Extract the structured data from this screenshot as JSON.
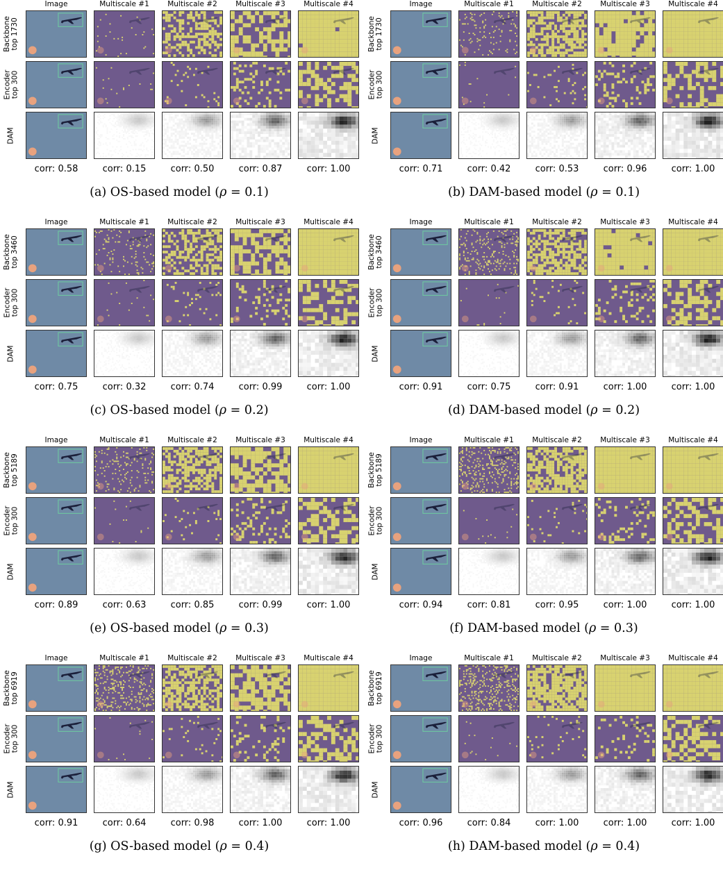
{
  "column_headers": [
    "Image",
    "Multiscale #1",
    "Multiscale #2",
    "Multiscale #3",
    "Multiscale #4"
  ],
  "row_encoder": "Encoder top 300",
  "row_dam": "DAM",
  "panels": [
    {
      "label": "(a)",
      "model": "OS-based model",
      "rho": "0.1",
      "backbone": "Backbone top 1730",
      "corr": [
        "corr: 0.58",
        "corr: 0.15",
        "corr: 0.50",
        "corr: 0.87",
        "corr: 1.00"
      ]
    },
    {
      "label": "(b)",
      "model": "DAM-based model",
      "rho": "0.1",
      "backbone": "Backbone top 1730",
      "corr": [
        "corr: 0.71",
        "corr: 0.42",
        "corr: 0.53",
        "corr: 0.96",
        "corr: 1.00"
      ]
    },
    {
      "label": "(c)",
      "model": "OS-based model",
      "rho": "0.2",
      "backbone": "Backbone top 3460",
      "corr": [
        "corr: 0.75",
        "corr: 0.32",
        "corr: 0.74",
        "corr: 0.99",
        "corr: 1.00"
      ]
    },
    {
      "label": "(d)",
      "model": "DAM-based model",
      "rho": "0.2",
      "backbone": "Backbone top 3460",
      "corr": [
        "corr: 0.91",
        "corr: 0.75",
        "corr: 0.91",
        "corr: 1.00",
        "corr: 1.00"
      ]
    },
    {
      "label": "(e)",
      "model": "OS-based model",
      "rho": "0.3",
      "backbone": "Backbone top 5189",
      "corr": [
        "corr: 0.89",
        "corr: 0.63",
        "corr: 0.85",
        "corr: 0.99",
        "corr: 1.00"
      ]
    },
    {
      "label": "(f)",
      "model": "DAM-based model",
      "rho": "0.3",
      "backbone": "Backbone top 5189",
      "corr": [
        "corr: 0.94",
        "corr: 0.81",
        "corr: 0.95",
        "corr: 1.00",
        "corr: 1.00"
      ]
    },
    {
      "label": "(g)",
      "model": "OS-based model",
      "rho": "0.4",
      "backbone": "Backbone top 6919",
      "corr": [
        "corr: 0.91",
        "corr: 0.64",
        "corr: 0.98",
        "corr: 1.00",
        "corr: 1.00"
      ]
    },
    {
      "label": "(h)",
      "model": "DAM-based model",
      "rho": "0.4",
      "backbone": "Backbone top 6919",
      "corr": [
        "corr: 0.96",
        "corr: 0.84",
        "corr: 1.00",
        "corr: 1.00",
        "corr: 1.00"
      ]
    }
  ],
  "colors": {
    "sky": "#6f8aa6",
    "purple": "#6f5a8c",
    "yellow": "#d8d270",
    "moon": "#e8a27e",
    "plane": "#1b1f3a",
    "box": "#6fd0a0"
  }
}
